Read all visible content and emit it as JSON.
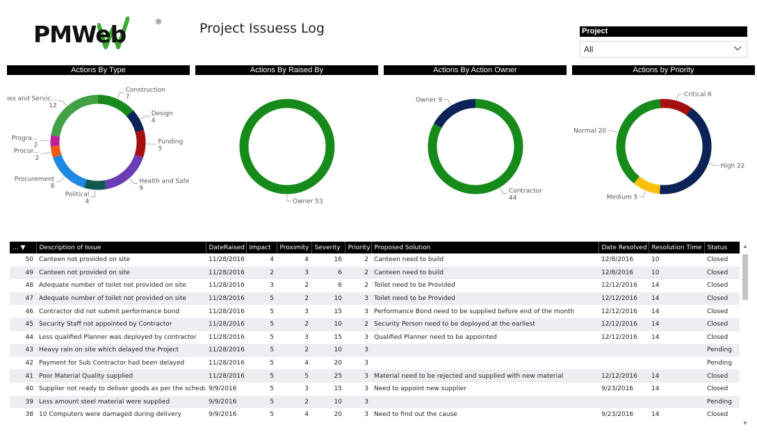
{
  "header": {
    "logo_text": "PMWeb",
    "logo_reg": "®",
    "title": "Project Issuess Log"
  },
  "slicer": {
    "label": "Project",
    "value": "All"
  },
  "colors": {
    "green": "#168a1a",
    "navy": "#0b2356",
    "darkred": "#a50f0f",
    "lightgreen": "#43a047",
    "blue": "#1e88e5",
    "purple": "#6a3db4",
    "teal": "#0e5a4f",
    "orange": "#f05a12",
    "magenta": "#c0219a",
    "yellow": "#f9c10e"
  },
  "chart_data": [
    {
      "type": "pie",
      "donut": true,
      "title": "Actions By Type",
      "slices": [
        {
          "label": "Construction",
          "value": 7,
          "color": "#168a1a"
        },
        {
          "label": "Design",
          "value": 4,
          "color": "#0b2356"
        },
        {
          "label": "Funding",
          "value": 5,
          "color": "#a50f0f"
        },
        {
          "label": "Health and Safet...",
          "value": 9,
          "color": "#6a3db4"
        },
        {
          "label": "Political",
          "value": 4,
          "color": "#0e5a4f"
        },
        {
          "label": "Procurement",
          "value": 8,
          "color": "#1e88e5"
        },
        {
          "label": "Procur...",
          "value": 2,
          "color": "#f05a12"
        },
        {
          "label": "Progra...",
          "value": 2,
          "color": "#c0219a"
        },
        {
          "label": "Utilities and Servic...",
          "value": 12,
          "color": "#43a047"
        }
      ]
    },
    {
      "type": "pie",
      "donut": true,
      "title": "Actions By Raised By",
      "slices": [
        {
          "label": "Owner",
          "value": 53,
          "color": "#168a1a"
        }
      ]
    },
    {
      "type": "pie",
      "donut": true,
      "title": "Actions By Action Owner",
      "slices": [
        {
          "label": "Contractor",
          "value": 44,
          "color": "#168a1a"
        },
        {
          "label": "Owner",
          "value": 9,
          "color": "#0b2356"
        }
      ]
    },
    {
      "type": "pie",
      "donut": true,
      "title": "Actions by Priority",
      "slices": [
        {
          "label": "Critical",
          "value": 6,
          "color": "#a50f0f"
        },
        {
          "label": "High",
          "value": 22,
          "color": "#0b2356"
        },
        {
          "label": "Medium",
          "value": 5,
          "color": "#f9c10e"
        },
        {
          "label": "Normal",
          "value": 20,
          "color": "#168a1a"
        }
      ]
    },
    {
      "type": "table",
      "columns": [
        "...",
        "Description of Issue",
        "DateRaised",
        "Impact",
        "Proximity",
        "Severity",
        "Priority",
        "Proposed Solution",
        "Date Resolved",
        "Resolution Time",
        "Status"
      ],
      "rows": [
        [
          "50",
          "Canteen not provided on site",
          "11/28/2016",
          "4",
          "4",
          "16",
          "2",
          "Canteen need to build",
          "12/8/2016",
          "10",
          "Closed"
        ],
        [
          "49",
          "Canteen not provided on site",
          "11/28/2016",
          "2",
          "3",
          "6",
          "2",
          "Canteen need to build",
          "12/8/2016",
          "10",
          "Closed"
        ],
        [
          "48",
          "Adequate number of toilet not provided on site",
          "11/28/2016",
          "3",
          "2",
          "6",
          "2",
          "Toilet need to be Provided",
          "12/12/2016",
          "14",
          "Closed"
        ],
        [
          "47",
          "Adequate number of toilet not provided on site",
          "11/28/2016",
          "5",
          "2",
          "10",
          "3",
          "Toilet need to be Provided",
          "12/12/2016",
          "14",
          "Closed"
        ],
        [
          "46",
          "Contractor did not submit performance bond",
          "11/28/2016",
          "5",
          "3",
          "15",
          "3",
          "Performance Bond need to be supplied before end of the month",
          "12/12/2016",
          "14",
          "Closed"
        ],
        [
          "45",
          "Security Staff not appointed by Contractor",
          "11/28/2016",
          "5",
          "2",
          "10",
          "2",
          "Security Person need to be deployed at the earliest",
          "12/12/2016",
          "14",
          "Closed"
        ],
        [
          "44",
          "Less qualified Planner was deployed by contractor",
          "11/28/2016",
          "5",
          "3",
          "15",
          "3",
          "Qualified Planner need to be appointed",
          "12/12/2016",
          "14",
          "Closed"
        ],
        [
          "43",
          "Heavy rain on site which delayed the Project",
          "11/28/2016",
          "5",
          "2",
          "10",
          "3",
          "",
          "",
          "",
          "Pending"
        ],
        [
          "42",
          "Payment for Sub Contractor had been delayed",
          "11/28/2016",
          "5",
          "4",
          "20",
          "3",
          "",
          "",
          "",
          "Pending"
        ],
        [
          "41",
          "Poor Material Quality supplied",
          "11/28/2016",
          "5",
          "5",
          "25",
          "3",
          "Material need to be rejected and supplied with new material",
          "12/12/2016",
          "14",
          "Closed"
        ],
        [
          "40",
          "Supplier not ready to deliver goods as per the schedule",
          "9/9/2016",
          "5",
          "3",
          "15",
          "3",
          "Need to appoint new supplier",
          "9/23/2016",
          "14",
          "Closed"
        ],
        [
          "39",
          "Less amount steel material were supplied",
          "9/9/2016",
          "5",
          "2",
          "10",
          "3",
          "",
          "",
          "",
          "Pending"
        ],
        [
          "38",
          "10 Computers were damaged during delivery",
          "9/9/2016",
          "5",
          "4",
          "20",
          "3",
          "Need to find out the cause",
          "9/23/2016",
          "14",
          "Closed"
        ]
      ]
    }
  ]
}
